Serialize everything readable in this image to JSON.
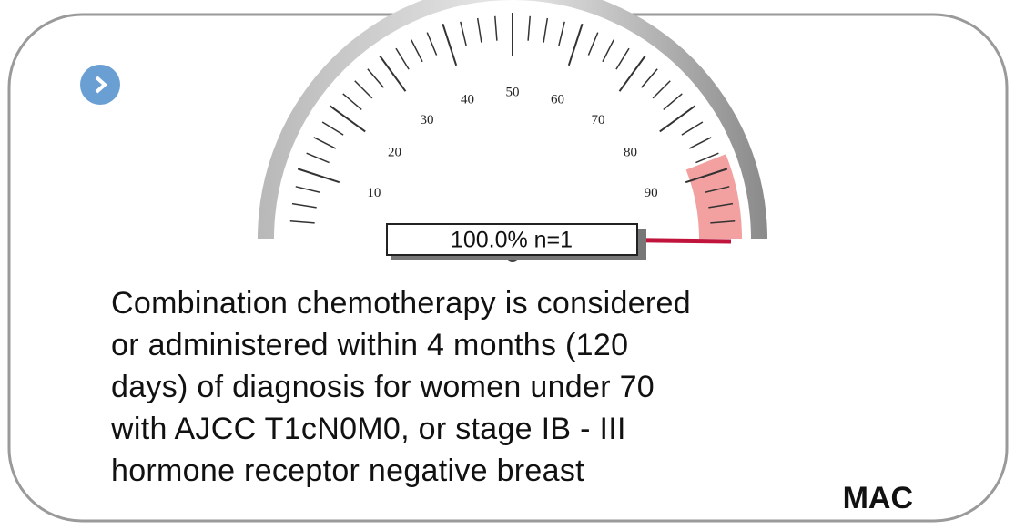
{
  "gauge": {
    "value": 100,
    "value_label": "100.0% n=1",
    "range": [
      0,
      100
    ],
    "ticks": [
      10,
      20,
      30,
      40,
      50,
      60,
      70,
      80,
      90
    ],
    "band": {
      "from": 88,
      "to": 100,
      "color": "#f2a0a0"
    }
  },
  "description": [
    "Combination chemotherapy is considered",
    "or administered within 4 months (120",
    "days) of diagnosis for women under 70",
    "with AJCC T1cN0M0, or stage IB - III",
    "hormone receptor negative breast"
  ],
  "footer": "MAC"
}
